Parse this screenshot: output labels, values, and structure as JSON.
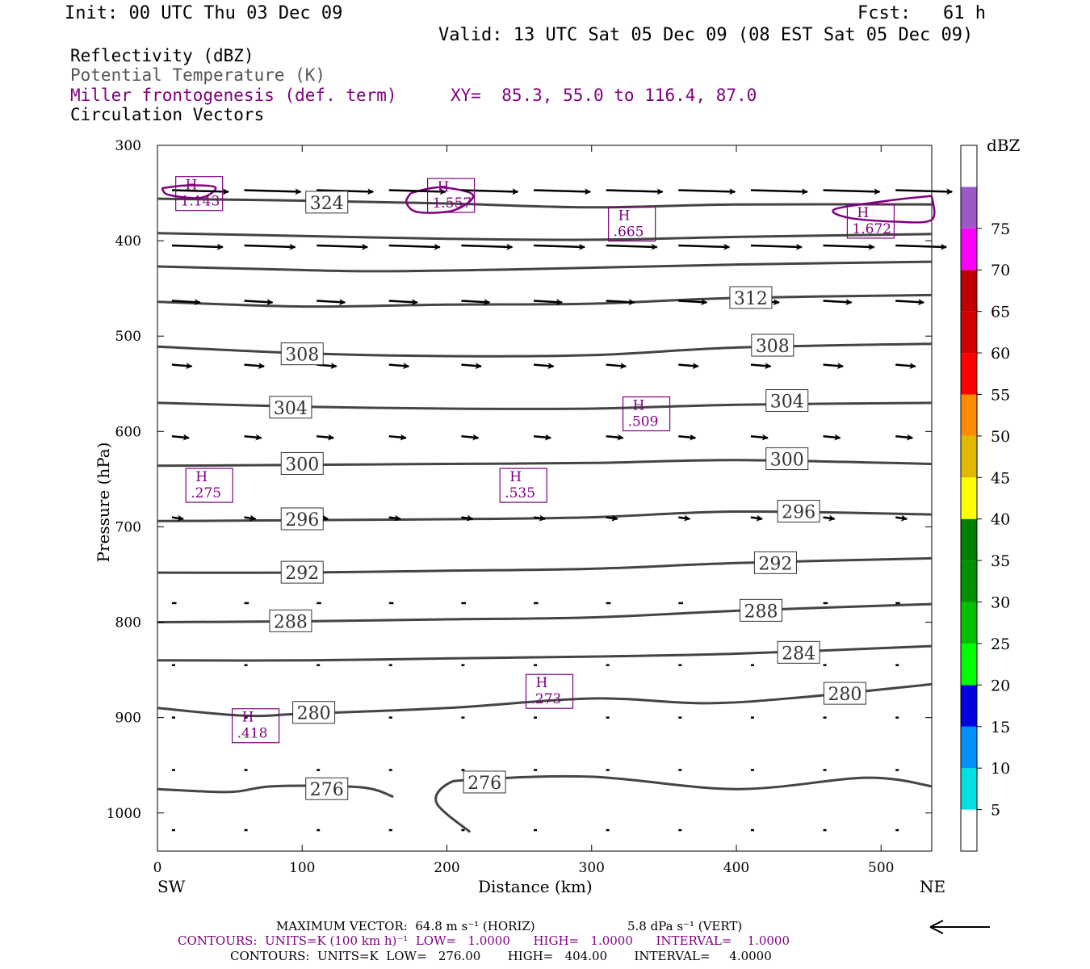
{
  "header": {
    "init": "Init: 00 UTC Thu 03 Dec 09",
    "fcst": "Fcst:   61 h",
    "valid": "Valid: 13 UTC Sat 05 Dec 09 (08 EST Sat 05 Dec 09)",
    "field1": "Reflectivity (dBZ)",
    "field2": "Potential Temperature (K)",
    "field3": "Miller frontogenesis (def. term)",
    "xy": "XY=  85.3, 55.0 to 116.4, 87.0",
    "field4": "Circulation Vectors"
  },
  "colors": {
    "purple": "#800080",
    "contour": "#444444",
    "vector": "#000000"
  },
  "chart_data": {
    "type": "cross-section",
    "xlabel": "Distance (km)",
    "ylabel": "Pressure (hPa)",
    "xlim": [
      0,
      535
    ],
    "ylim": [
      1040,
      300
    ],
    "x_ticks": [
      "0",
      "100",
      "200",
      "300",
      "400",
      "500"
    ],
    "y_ticks": [
      "300",
      "400",
      "500",
      "600",
      "700",
      "800",
      "900",
      "1000"
    ],
    "x_end_labels": {
      "left": "SW",
      "right": "NE"
    },
    "colorbar": {
      "unit": "dBZ",
      "levels": [
        "5",
        "10",
        "15",
        "20",
        "25",
        "30",
        "35",
        "40",
        "45",
        "50",
        "55",
        "60",
        "65",
        "70",
        "75"
      ],
      "colors": [
        "#ffffff",
        "#00e0e0",
        "#0090ff",
        "#0000e0",
        "#00ff00",
        "#00c000",
        "#009000",
        "#008000",
        "#ffff00",
        "#e0b800",
        "#ff8c00",
        "#ff0000",
        "#d00000",
        "#c00000",
        "#ff00ff",
        "#9b59c8",
        "#ffffff"
      ]
    },
    "theta_contours": [
      {
        "label": "324",
        "points": [
          [
            0,
            356
          ],
          [
            100,
            358
          ],
          [
            200,
            361
          ],
          [
            300,
            365
          ],
          [
            400,
            362
          ],
          [
            535,
            362
          ]
        ],
        "label_at": [
          117,
          360
        ]
      },
      {
        "label": "",
        "points": [
          [
            0,
            392
          ],
          [
            100,
            395
          ],
          [
            200,
            398
          ],
          [
            300,
            399
          ],
          [
            400,
            396
          ],
          [
            535,
            393
          ]
        ],
        "label_at": null
      },
      {
        "label": "",
        "points": [
          [
            0,
            427
          ],
          [
            80,
            430
          ],
          [
            150,
            432
          ],
          [
            250,
            430
          ],
          [
            400,
            425
          ],
          [
            535,
            422
          ]
        ],
        "label_at": null
      },
      {
        "label": "312",
        "points": [
          [
            0,
            464
          ],
          [
            100,
            469
          ],
          [
            200,
            467
          ],
          [
            300,
            466
          ],
          [
            400,
            460
          ],
          [
            535,
            457
          ]
        ],
        "label_at": [
          410,
          460
        ]
      },
      {
        "label": "308",
        "points": [
          [
            0,
            511
          ],
          [
            100,
            518
          ],
          [
            200,
            521
          ],
          [
            300,
            520
          ],
          [
            400,
            512
          ],
          [
            535,
            508
          ]
        ],
        "label_at": [
          100,
          519
        ],
        "label_at2": [
          425,
          510
        ]
      },
      {
        "label": "304",
        "points": [
          [
            0,
            570
          ],
          [
            100,
            574
          ],
          [
            200,
            576
          ],
          [
            300,
            576
          ],
          [
            400,
            572
          ],
          [
            535,
            570
          ]
        ],
        "label_at": [
          92,
          575
        ],
        "label_at2": [
          435,
          568
        ]
      },
      {
        "label": "300",
        "points": [
          [
            0,
            636
          ],
          [
            100,
            635
          ],
          [
            200,
            634
          ],
          [
            300,
            633
          ],
          [
            400,
            630
          ],
          [
            535,
            634
          ]
        ],
        "label_at": [
          100,
          634
        ],
        "label_at2": [
          435,
          629
        ]
      },
      {
        "label": "296",
        "points": [
          [
            0,
            694
          ],
          [
            100,
            693
          ],
          [
            200,
            692
          ],
          [
            300,
            690
          ],
          [
            400,
            684
          ],
          [
            535,
            687
          ]
        ],
        "label_at": [
          100,
          692
        ],
        "label_at2": [
          443,
          684
        ]
      },
      {
        "label": "292",
        "points": [
          [
            0,
            748
          ],
          [
            100,
            748
          ],
          [
            200,
            746
          ],
          [
            300,
            744
          ],
          [
            400,
            738
          ],
          [
            535,
            733
          ]
        ],
        "label_at": [
          100,
          748
        ],
        "label_at2": [
          427,
          738
        ]
      },
      {
        "label": "288",
        "points": [
          [
            0,
            800
          ],
          [
            100,
            799
          ],
          [
            200,
            797
          ],
          [
            300,
            795
          ],
          [
            400,
            788
          ],
          [
            535,
            781
          ]
        ],
        "label_at": [
          92,
          799
        ],
        "label_at2": [
          417,
          788
        ]
      },
      {
        "label": "284",
        "points": [
          [
            0,
            840
          ],
          [
            100,
            840
          ],
          [
            200,
            838
          ],
          [
            300,
            836
          ],
          [
            400,
            833
          ],
          [
            535,
            825
          ]
        ],
        "label_at": [
          443,
          832
        ]
      },
      {
        "label": "280",
        "points": [
          [
            0,
            890
          ],
          [
            60,
            898
          ],
          [
            100,
            896
          ],
          [
            200,
            890
          ],
          [
            300,
            880
          ],
          [
            380,
            885
          ],
          [
            450,
            878
          ],
          [
            535,
            865
          ]
        ],
        "label_at": [
          108,
          895
        ],
        "label_at2": [
          475,
          875
        ]
      },
      {
        "label": "276",
        "points": [
          [
            0,
            975
          ],
          [
            50,
            978
          ],
          [
            80,
            972
          ],
          [
            140,
            973
          ],
          [
            163,
            983
          ]
        ],
        "label_at": [
          117,
          975
        ]
      },
      {
        "label": "276",
        "points": [
          [
            535,
            972
          ],
          [
            490,
            963
          ],
          [
            400,
            975
          ],
          [
            300,
            962
          ],
          [
            220,
            965
          ],
          [
            200,
            970
          ],
          [
            193,
            990
          ],
          [
            216,
            1020
          ]
        ],
        "label_at": [
          226,
          968
        ]
      }
    ],
    "vector_rows": [
      {
        "p": 347,
        "x": [
          10,
          60,
          110,
          160,
          210,
          260,
          310,
          360,
          410,
          460,
          510
        ],
        "u": [
          1,
          1,
          1,
          1,
          1,
          1,
          1,
          1,
          1,
          1,
          1
        ]
      },
      {
        "p": 405,
        "x": [
          10,
          60,
          110,
          160,
          210,
          260,
          310,
          360,
          410,
          460,
          510
        ],
        "u": [
          0.9,
          0.9,
          0.9,
          0.9,
          0.9,
          0.9,
          0.9,
          0.9,
          0.9,
          0.9,
          0.9
        ]
      },
      {
        "p": 463,
        "x": [
          10,
          60,
          110,
          160,
          210,
          260,
          310,
          360,
          410,
          460,
          510
        ],
        "u": [
          0.5,
          0.5,
          0.5,
          0.5,
          0.5,
          0.5,
          0.5,
          0.5,
          0.5,
          0.5,
          0.5
        ]
      },
      {
        "p": 530,
        "x": [
          10,
          60,
          110,
          160,
          210,
          260,
          310,
          360,
          410,
          460,
          510
        ],
        "u": [
          0.35,
          0.35,
          0.35,
          0.35,
          0.35,
          0.35,
          0.35,
          0.35,
          0.35,
          0.35,
          0.35
        ]
      },
      {
        "p": 605,
        "x": [
          10,
          60,
          110,
          160,
          210,
          260,
          310,
          360,
          410,
          460,
          510
        ],
        "u": [
          0.3,
          0.3,
          0.3,
          0.3,
          0.3,
          0.3,
          0.3,
          0.3,
          0.3,
          0.3,
          0.3
        ]
      },
      {
        "p": 690,
        "x": [
          10,
          60,
          110,
          160,
          210,
          260,
          310,
          360,
          410,
          460,
          510
        ],
        "u": [
          0.2,
          0.2,
          0.2,
          0.2,
          0.2,
          0.2,
          0.2,
          0.2,
          0.2,
          0.2,
          0.2
        ]
      },
      {
        "p": 780,
        "x": [
          10,
          60,
          110,
          160,
          210,
          260,
          310,
          360,
          410,
          460,
          510
        ],
        "u": [
          0.08,
          0.08,
          0.08,
          0.08,
          0.08,
          0.08,
          0.08,
          0.08,
          0.08,
          0.08,
          0.08
        ]
      },
      {
        "p": 845,
        "x": [
          10,
          60,
          110,
          160,
          210,
          260,
          310,
          360,
          410,
          460,
          510
        ],
        "u": [
          0.03,
          0.03,
          0.03,
          0.03,
          0.03,
          0.03,
          0.03,
          0.03,
          0.03,
          0.03,
          0.03
        ]
      },
      {
        "p": 900,
        "x": [
          10,
          60,
          110,
          160,
          210,
          260,
          310,
          360,
          410,
          460,
          510
        ],
        "u": [
          0.03,
          0.03,
          0.03,
          0.03,
          0.03,
          0.03,
          0.03,
          0.03,
          0.03,
          0.03,
          0.03
        ]
      },
      {
        "p": 955,
        "x": [
          10,
          60,
          110,
          160,
          210,
          260,
          310,
          360,
          410,
          460,
          510
        ],
        "u": [
          0.05,
          0.05,
          0.05,
          0.05,
          0.05,
          0.05,
          0.05,
          0.05,
          0.05,
          0.05,
          0.05
        ]
      },
      {
        "p": 1018,
        "x": [
          10,
          60,
          110,
          160,
          210,
          260,
          310,
          360,
          410,
          460,
          510
        ],
        "u": [
          0.03,
          0.03,
          0.03,
          0.03,
          0.03,
          0.03,
          0.03,
          0.03,
          0.03,
          0.03,
          0.03
        ]
      }
    ],
    "frontogenesis_highs": [
      {
        "value": "1.143",
        "x": 16,
        "p": 348
      },
      {
        "value": "1.557",
        "x": 190,
        "p": 350
      },
      {
        "value": ".665",
        "x": 315,
        "p": 380
      },
      {
        "value": "1.672",
        "x": 480,
        "p": 377
      },
      {
        "value": ".509",
        "x": 325,
        "p": 579
      },
      {
        "value": ".275",
        "x": 23,
        "p": 654
      },
      {
        "value": ".535",
        "x": 240,
        "p": 654
      },
      {
        "value": ".273",
        "x": 258,
        "p": 870
      },
      {
        "value": ".418",
        "x": 55,
        "p": 906
      }
    ],
    "frontogenesis_contours": [
      {
        "points": [
          [
            3,
            345
          ],
          [
            20,
            342
          ],
          [
            40,
            344
          ],
          [
            30,
            355
          ],
          [
            8,
            352
          ]
        ]
      },
      {
        "points": [
          [
            175,
            350
          ],
          [
            195,
            344
          ],
          [
            218,
            352
          ],
          [
            205,
            368
          ],
          [
            180,
            370
          ],
          [
            172,
            360
          ]
        ]
      },
      {
        "points": [
          [
            535,
            353
          ],
          [
            505,
            358
          ],
          [
            468,
            367
          ],
          [
            478,
            376
          ],
          [
            510,
            380
          ],
          [
            535,
            378
          ]
        ]
      }
    ]
  },
  "footer": {
    "line1a": "MAXIMUM VECTOR:  64.8 m s⁻¹ (HORIZ)",
    "line1b": "5.8 dPa s⁻¹ (VERT)",
    "line2": "CONTOURS:  UNITS=K (100 km h)⁻¹  LOW=   1.0000      HIGH=   1.0000      INTERVAL=    1.0000",
    "line3": "CONTOURS:  UNITS=K  LOW=   276.00       HIGH=   404.00       INTERVAL=     4.0000"
  }
}
